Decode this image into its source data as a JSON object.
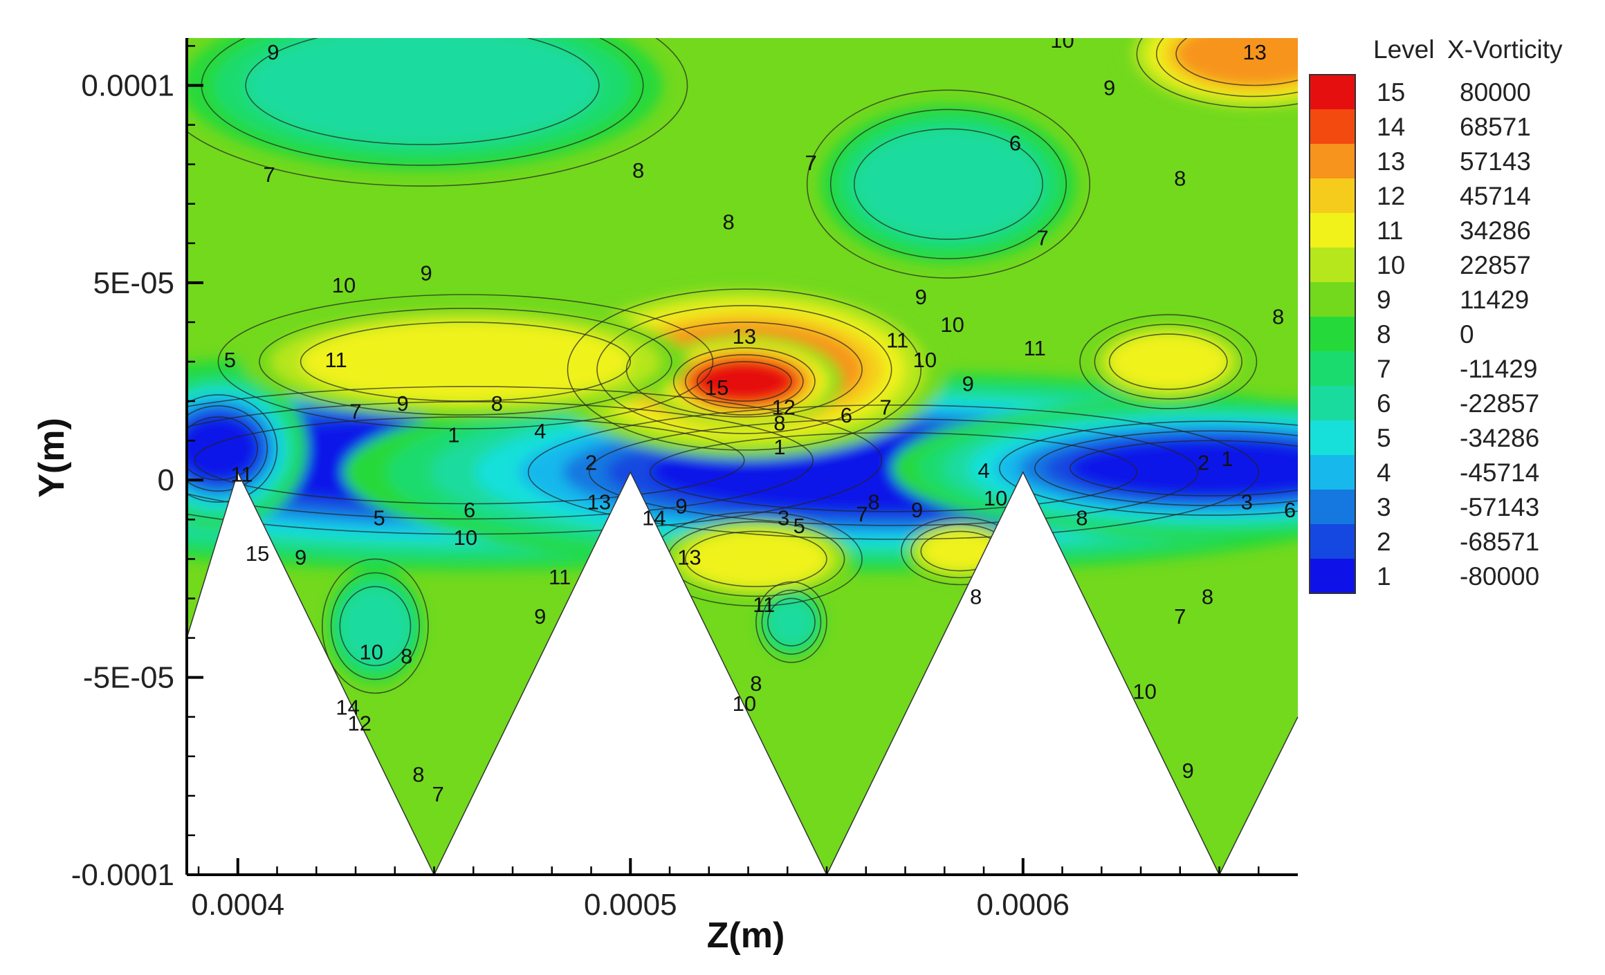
{
  "chart_data": {
    "type": "heatmap",
    "subtype": "filled-contour",
    "xlabel": "Z(m)",
    "ylabel": "Y(m)",
    "xlim": [
      0.000387,
      0.00067
    ],
    "ylim": [
      -0.0001,
      0.000112
    ],
    "x_ticks": [
      {
        "value": 0.0004,
        "label": "0.0004"
      },
      {
        "value": 0.0005,
        "label": "0.0005"
      },
      {
        "value": 0.0006,
        "label": "0.0006"
      }
    ],
    "y_ticks": [
      {
        "value": 0.0001,
        "label": "0.0001"
      },
      {
        "value": 5e-05,
        "label": "5E-05"
      },
      {
        "value": 0,
        "label": "0"
      },
      {
        "value": -5e-05,
        "label": "-5E-05"
      },
      {
        "value": -0.0001,
        "label": "-0.0001"
      }
    ],
    "legend": {
      "position": "right",
      "level_header": "Level",
      "variable_header": "X-Vorticity",
      "entries": [
        {
          "level": "15",
          "value": "80000",
          "color": "#e60f0f"
        },
        {
          "level": "14",
          "value": "68571",
          "color": "#f24a0f"
        },
        {
          "level": "13",
          "value": "57143",
          "color": "#f7941d"
        },
        {
          "level": "12",
          "value": "45714",
          "color": "#f5cc1c"
        },
        {
          "level": "11",
          "value": "34286",
          "color": "#f0f21a"
        },
        {
          "level": "10",
          "value": "22857",
          "color": "#b6e61c"
        },
        {
          "level": "9",
          "value": "11429",
          "color": "#72d91d"
        },
        {
          "level": "8",
          "value": "0",
          "color": "#26d93a"
        },
        {
          "level": "7",
          "value": "-11429",
          "color": "#1adb6e"
        },
        {
          "level": "6",
          "value": "-22857",
          "color": "#1adb9e"
        },
        {
          "level": "5",
          "value": "-34286",
          "color": "#17e0da"
        },
        {
          "level": "4",
          "value": "-45714",
          "color": "#17b8ec"
        },
        {
          "level": "3",
          "value": "-57143",
          "color": "#1478e0"
        },
        {
          "level": "2",
          "value": "-68571",
          "color": "#1448e0"
        },
        {
          "level": "1",
          "value": "-80000",
          "color": "#0f12e8"
        }
      ]
    },
    "boundary": {
      "description": "triangular serrated wall",
      "vertices": [
        [
          0.000387,
          -4e-05
        ],
        [
          0.0004,
          2e-06
        ],
        [
          0.00045,
          -0.0001
        ],
        [
          0.0005,
          2e-06
        ],
        [
          0.00055,
          -0.0001
        ],
        [
          0.0006,
          2e-06
        ],
        [
          0.00065,
          -0.0001
        ],
        [
          0.00067,
          -6e-05
        ]
      ]
    },
    "regions": [
      {
        "level": 1,
        "z": 0.000459,
        "y": 5e-06,
        "rz": 7e-05,
        "ry": 1.1e-05
      },
      {
        "level": 1,
        "z": 0.000567,
        "y": 2e-06,
        "rz": 6.2e-05,
        "ry": 1e-05
      },
      {
        "level": 1,
        "z": 0.000648,
        "y": 3e-06,
        "rz": 3.6e-05,
        "ry": 7e-06
      },
      {
        "level": 1,
        "z": 0.000395,
        "y": 8e-06,
        "rz": 1e-05,
        "ry": 8e-06
      },
      {
        "level": 13,
        "z": 0.000529,
        "y": 2.8e-05,
        "rz": 3e-05,
        "ry": 1.2e-05
      },
      {
        "level": 15,
        "z": 0.000529,
        "y": 2.5e-05,
        "rz": 1.2e-05,
        "ry": 5e-06
      },
      {
        "level": 11,
        "z": 0.000458,
        "y": 3e-05,
        "rz": 4.2e-05,
        "ry": 1e-05
      },
      {
        "level": 11,
        "z": 0.000637,
        "y": 3e-05,
        "rz": 1.5e-05,
        "ry": 7e-06
      },
      {
        "level": 6,
        "z": 0.000447,
        "y": 0.0001,
        "rz": 4.5e-05,
        "ry": 1.5e-05
      },
      {
        "level": 6,
        "z": 0.000581,
        "y": 7.5e-05,
        "rz": 2.4e-05,
        "ry": 1.4e-05
      },
      {
        "level": 13,
        "z": 0.000659,
        "y": 0.000108,
        "rz": 2e-05,
        "ry": 8e-06
      },
      {
        "level": 11,
        "z": 0.000532,
        "y": -2e-05,
        "rz": 1.8e-05,
        "ry": 7e-06
      },
      {
        "level": 11,
        "z": 0.000584,
        "y": -1.8e-05,
        "rz": 1e-05,
        "ry": 5e-06
      },
      {
        "level": 6,
        "z": 0.000435,
        "y": -3.7e-05,
        "rz": 9e-06,
        "ry": 1e-05
      },
      {
        "level": 6,
        "z": 0.000541,
        "y": -3.6e-05,
        "rz": 6e-06,
        "ry": 6e-06
      }
    ],
    "contour_labels": [
      {
        "text": "9",
        "z": 0.000409,
        "y": 0.000108
      },
      {
        "text": "7",
        "z": 0.000408,
        "y": 7.7e-05
      },
      {
        "text": "8",
        "z": 0.000502,
        "y": 7.8e-05
      },
      {
        "text": "8",
        "z": 0.000525,
        "y": 6.5e-05
      },
      {
        "text": "7",
        "z": 0.000546,
        "y": 8e-05
      },
      {
        "text": "6",
        "z": 0.000598,
        "y": 8.5e-05
      },
      {
        "text": "8",
        "z": 0.00064,
        "y": 7.6e-05
      },
      {
        "text": "7",
        "z": 0.000605,
        "y": 6.1e-05
      },
      {
        "text": "9",
        "z": 0.000622,
        "y": 9.9e-05
      },
      {
        "text": "10",
        "z": 0.00061,
        "y": 0.000111
      },
      {
        "text": "13",
        "z": 0.000659,
        "y": 0.000108
      },
      {
        "text": "9",
        "z": 0.000448,
        "y": 5.2e-05
      },
      {
        "text": "10",
        "z": 0.000427,
        "y": 4.9e-05
      },
      {
        "text": "11",
        "z": 0.000425,
        "y": 3e-05
      },
      {
        "text": "13",
        "z": 0.000529,
        "y": 3.6e-05
      },
      {
        "text": "15",
        "z": 0.000522,
        "y": 2.3e-05
      },
      {
        "text": "12",
        "z": 0.000539,
        "y": 1.8e-05
      },
      {
        "text": "8",
        "z": 0.000538,
        "y": 1.4e-05
      },
      {
        "text": "11",
        "z": 0.000568,
        "y": 3.5e-05
      },
      {
        "text": "10",
        "z": 0.000582,
        "y": 3.9e-05
      },
      {
        "text": "9",
        "z": 0.000574,
        "y": 4.6e-05
      },
      {
        "text": "10",
        "z": 0.000575,
        "y": 3e-05
      },
      {
        "text": "9",
        "z": 0.000586,
        "y": 2.4e-05
      },
      {
        "text": "11",
        "z": 0.000603,
        "y": 3.3e-05
      },
      {
        "text": "8",
        "z": 0.000665,
        "y": 4.1e-05
      },
      {
        "text": "5",
        "z": 0.000398,
        "y": 3e-05
      },
      {
        "text": "7",
        "z": 0.00043,
        "y": 1.7e-05
      },
      {
        "text": "9",
        "z": 0.000442,
        "y": 1.9e-05
      },
      {
        "text": "8",
        "z": 0.000466,
        "y": 1.9e-05
      },
      {
        "text": "1",
        "z": 0.000455,
        "y": 1.1e-05
      },
      {
        "text": "4",
        "z": 0.000477,
        "y": 1.2e-05
      },
      {
        "text": "6",
        "z": 0.000555,
        "y": 1.6e-05
      },
      {
        "text": "7",
        "z": 0.000565,
        "y": 1.8e-05
      },
      {
        "text": "1",
        "z": 0.000538,
        "y": 8e-06
      },
      {
        "text": "2",
        "z": 0.00049,
        "y": 4e-06
      },
      {
        "text": "4",
        "z": 0.00059,
        "y": 2e-06
      },
      {
        "text": "2",
        "z": 0.000646,
        "y": 4e-06
      },
      {
        "text": "1",
        "z": 0.000652,
        "y": 5e-06
      },
      {
        "text": "3",
        "z": 0.000657,
        "y": -6e-06
      },
      {
        "text": "6",
        "z": 0.000668,
        "y": -8e-06
      },
      {
        "text": "5",
        "z": 0.000436,
        "y": -1e-05
      },
      {
        "text": "6",
        "z": 0.000459,
        "y": -8e-06
      },
      {
        "text": "10",
        "z": 0.000458,
        "y": -1.5e-05
      },
      {
        "text": "13",
        "z": 0.000492,
        "y": -6e-06
      },
      {
        "text": "15",
        "z": 0.000405,
        "y": -1.9e-05
      },
      {
        "text": "11",
        "z": 0.000401,
        "y": 1e-06
      },
      {
        "text": "9",
        "z": 0.000416,
        "y": -2e-05
      },
      {
        "text": "14",
        "z": 0.000506,
        "y": -1e-05
      },
      {
        "text": "13",
        "z": 0.000515,
        "y": -2e-05
      },
      {
        "text": "9",
        "z": 0.000513,
        "y": -7e-06
      },
      {
        "text": "11",
        "z": 0.000534,
        "y": -3.2e-05
      },
      {
        "text": "3",
        "z": 0.000539,
        "y": -1e-05
      },
      {
        "text": "5",
        "z": 0.000543,
        "y": -1.2e-05
      },
      {
        "text": "7",
        "z": 0.000559,
        "y": -9e-06
      },
      {
        "text": "8",
        "z": 0.000562,
        "y": -6e-06
      },
      {
        "text": "9",
        "z": 0.000573,
        "y": -8e-06
      },
      {
        "text": "10",
        "z": 0.000593,
        "y": -5e-06
      },
      {
        "text": "8",
        "z": 0.000615,
        "y": -1e-05
      },
      {
        "text": "11",
        "z": 0.000482,
        "y": -2.5e-05
      },
      {
        "text": "9",
        "z": 0.000477,
        "y": -3.5e-05
      },
      {
        "text": "8",
        "z": 0.000443,
        "y": -4.5e-05
      },
      {
        "text": "10",
        "z": 0.000434,
        "y": -4.4e-05
      },
      {
        "text": "14",
        "z": 0.000428,
        "y": -5.8e-05
      },
      {
        "text": "12",
        "z": 0.000431,
        "y": -6.2e-05
      },
      {
        "text": "8",
        "z": 0.000446,
        "y": -7.5e-05
      },
      {
        "text": "7",
        "z": 0.000451,
        "y": -8e-05
      },
      {
        "text": "10",
        "z": 0.000529,
        "y": -5.7e-05
      },
      {
        "text": "8",
        "z": 0.000532,
        "y": -5.2e-05
      },
      {
        "text": "8",
        "z": 0.000588,
        "y": -3e-05
      },
      {
        "text": "7",
        "z": 0.00064,
        "y": -3.5e-05
      },
      {
        "text": "8",
        "z": 0.000647,
        "y": -3e-05
      },
      {
        "text": "10",
        "z": 0.000631,
        "y": -5.4e-05
      },
      {
        "text": "9",
        "z": 0.000642,
        "y": -7.4e-05
      }
    ]
  }
}
